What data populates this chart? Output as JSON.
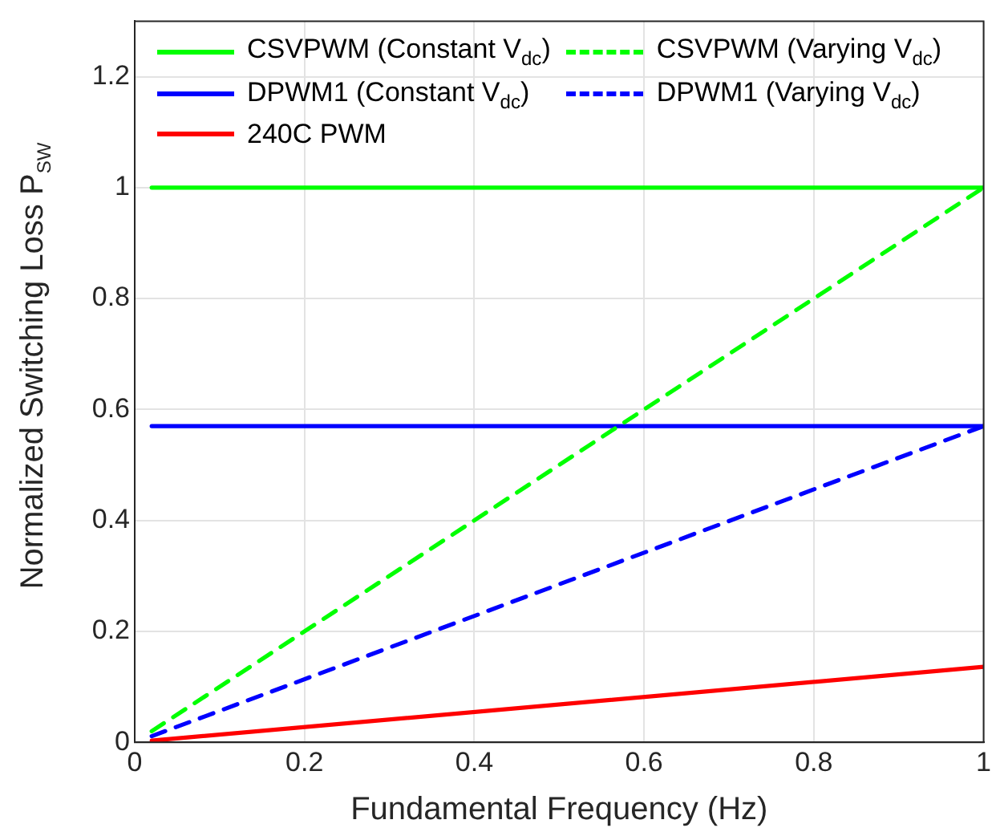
{
  "chart_data": {
    "type": "line",
    "xlabel": "Fundamental Frequency (Hz)",
    "ylabel": "Normalized Switching Loss P$_{SW}$",
    "xlim": [
      0,
      1
    ],
    "xticks": [
      0,
      0.2,
      0.4,
      0.6,
      0.8,
      1
    ],
    "ylim": [
      0,
      1.3
    ],
    "yticks": [
      0,
      0.2,
      0.4,
      0.6,
      0.8,
      1,
      1.2
    ],
    "grid": true,
    "legend": "top",
    "marker": "none",
    "x": [
      0.02,
      1
    ],
    "series": [
      {
        "name": "CSVPWM (Constant V$_{dc}$)",
        "color": "#00ff00",
        "line_style": "solid",
        "values": [
          1.0,
          1.0
        ]
      },
      {
        "name": "CSVPWM (Varying V$_{dc}$)",
        "color": "#00ff00",
        "line_style": "dashed",
        "values": [
          0.02,
          1.0
        ]
      },
      {
        "name": "DPWM1 (Constant V$_{dc}$)",
        "color": "#0000ff",
        "line_style": "solid",
        "values": [
          0.57,
          0.57
        ]
      },
      {
        "name": "DPWM1 (Varying V$_{dc}$)",
        "color": "#0000ff",
        "line_style": "dashed",
        "values": [
          0.011,
          0.57
        ]
      },
      {
        "name": "240C PWM",
        "color": "#ff0000",
        "line_style": "solid",
        "values": [
          0.003,
          0.136
        ]
      }
    ]
  }
}
